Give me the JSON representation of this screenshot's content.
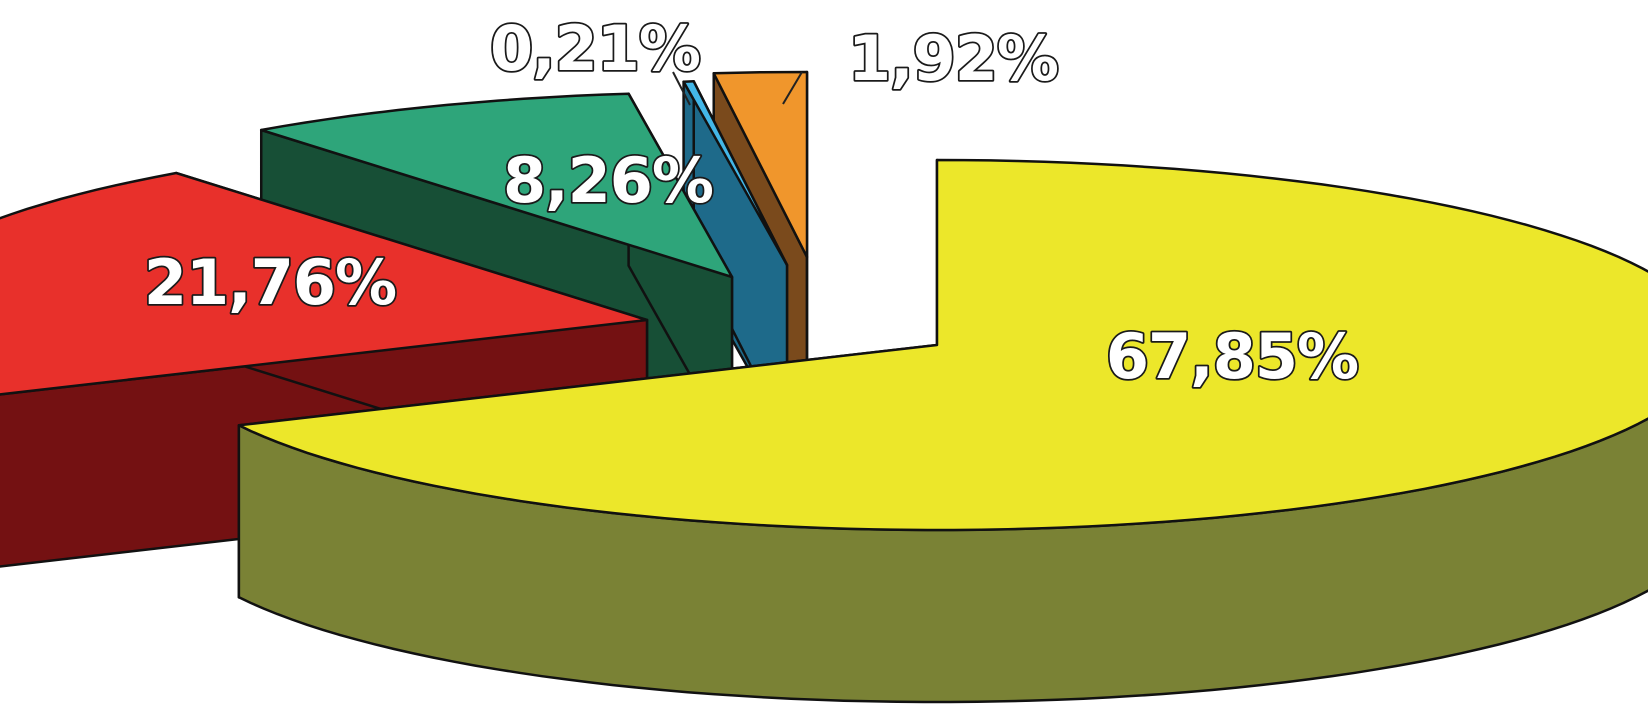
{
  "chart_data": {
    "type": "pie",
    "three_d": true,
    "exploded": true,
    "title": "",
    "slices": [
      {
        "label": "67,85%",
        "value": 67.85,
        "color": "#ece72a",
        "side_color": "#7a8235"
      },
      {
        "label": "21,76%",
        "value": 21.76,
        "color": "#e8302b",
        "side_color": "#741112"
      },
      {
        "label": "8,26%",
        "value": 8.26,
        "color": "#2ea57a",
        "side_color": "#174f36"
      },
      {
        "label": "0,21%",
        "value": 0.21,
        "color": "#43b7e8",
        "side_color": "#1e6a8a"
      },
      {
        "label": "1,92%",
        "value": 1.92,
        "color": "#f0962c",
        "side_color": "#7a4a1c"
      }
    ]
  }
}
